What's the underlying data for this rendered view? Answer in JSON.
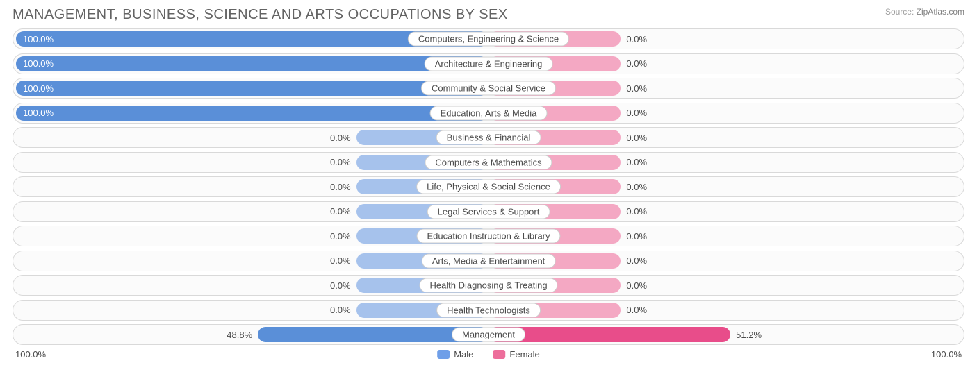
{
  "title": "MANAGEMENT, BUSINESS, SCIENCE AND ARTS OCCUPATIONS BY SEX",
  "source_prefix": "Source:",
  "source_name": "ZipAtlas.com",
  "axis": {
    "left": "100.0%",
    "right": "100.0%"
  },
  "legend": {
    "male": {
      "label": "Male",
      "color": "#6f9fe8"
    },
    "female": {
      "label": "Female",
      "color": "#ed6e9b"
    }
  },
  "colors": {
    "male_full": "#5a8fd8",
    "male_zero": "#a6c2ec",
    "female_full": "#e84d8a",
    "female_zero": "#f4a8c3",
    "row_border": "#d9d9d9",
    "row_bg": "#fbfbfb",
    "pill_border": "#cccccc",
    "text": "#4a4a4a"
  },
  "zero_bar_pct_of_half": 28,
  "rows": [
    {
      "label": "Computers, Engineering & Science",
      "male": 100.0,
      "female": 0.0
    },
    {
      "label": "Architecture & Engineering",
      "male": 100.0,
      "female": 0.0
    },
    {
      "label": "Community & Social Service",
      "male": 100.0,
      "female": 0.0
    },
    {
      "label": "Education, Arts & Media",
      "male": 100.0,
      "female": 0.0
    },
    {
      "label": "Business & Financial",
      "male": 0.0,
      "female": 0.0
    },
    {
      "label": "Computers & Mathematics",
      "male": 0.0,
      "female": 0.0
    },
    {
      "label": "Life, Physical & Social Science",
      "male": 0.0,
      "female": 0.0
    },
    {
      "label": "Legal Services & Support",
      "male": 0.0,
      "female": 0.0
    },
    {
      "label": "Education Instruction & Library",
      "male": 0.0,
      "female": 0.0
    },
    {
      "label": "Arts, Media & Entertainment",
      "male": 0.0,
      "female": 0.0
    },
    {
      "label": "Health Diagnosing & Treating",
      "male": 0.0,
      "female": 0.0
    },
    {
      "label": "Health Technologists",
      "male": 0.0,
      "female": 0.0
    },
    {
      "label": "Management",
      "male": 48.8,
      "female": 51.2
    }
  ]
}
